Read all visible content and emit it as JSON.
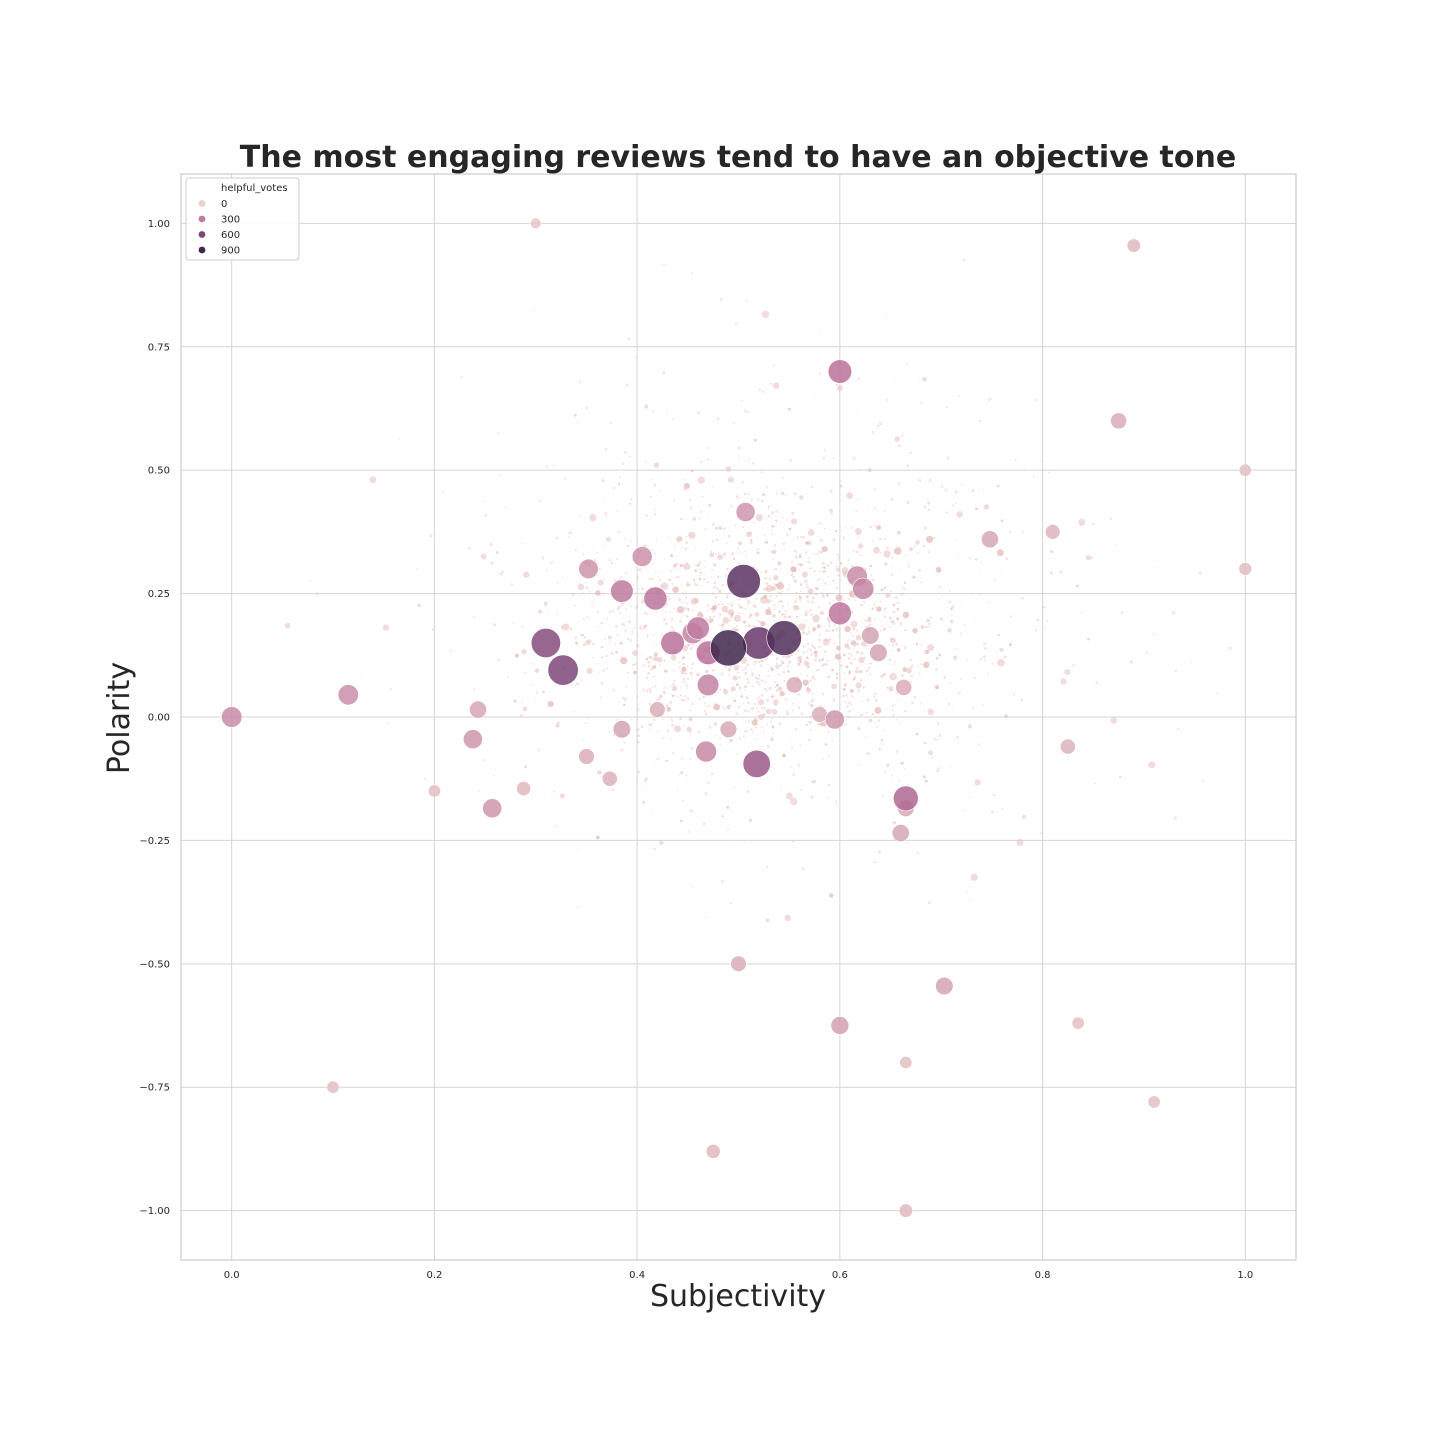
{
  "chart_data": {
    "type": "scatter",
    "title": "The most engaging reviews tend to have an objective tone",
    "xlabel": "Subjectivity",
    "ylabel": "Polarity",
    "xlim": [
      -0.05,
      1.05
    ],
    "ylim": [
      -1.1,
      1.1
    ],
    "xticks": [
      0.0,
      0.2,
      0.4,
      0.6,
      0.8,
      1.0
    ],
    "xtick_labels": [
      "0.0",
      "0.2",
      "0.4",
      "0.6",
      "0.8",
      "1.0"
    ],
    "yticks": [
      1.0,
      0.75,
      0.5,
      0.25,
      0.0,
      -0.25,
      -0.5,
      -0.75,
      -1.0
    ],
    "ytick_labels": [
      "1.00",
      "0.75",
      "0.50",
      "0.25",
      "0.00",
      "−0.25",
      "−0.50",
      "−0.75",
      "−1.00"
    ],
    "grid": true,
    "legend": {
      "title": "helpful_votes",
      "placement": "upper-left",
      "entries": [
        {
          "label": "0",
          "value": 0
        },
        {
          "label": "300",
          "value": 300
        },
        {
          "label": "600",
          "value": 600
        },
        {
          "label": "900",
          "value": 900
        }
      ]
    },
    "hue_colors": [
      "#edd1cb",
      "#b9719a",
      "#6e3b71",
      "#2d1e3e"
    ],
    "hue_max": 1000,
    "points": [
      {
        "x": 0.545,
        "y": 0.16,
        "votes": 820
      },
      {
        "x": 0.505,
        "y": 0.275,
        "votes": 760
      },
      {
        "x": 0.52,
        "y": 0.15,
        "votes": 700
      },
      {
        "x": 0.49,
        "y": 0.14,
        "votes": 900
      },
      {
        "x": 0.31,
        "y": 0.15,
        "votes": 560
      },
      {
        "x": 0.327,
        "y": 0.095,
        "votes": 600
      },
      {
        "x": 0.518,
        "y": -0.095,
        "votes": 470
      },
      {
        "x": 0.6,
        "y": 0.7,
        "votes": 330
      },
      {
        "x": 0.665,
        "y": -0.165,
        "votes": 380
      },
      {
        "x": 0.0,
        "y": 0.0,
        "votes": 240
      },
      {
        "x": 0.288,
        "y": -0.145,
        "votes": 90
      },
      {
        "x": 0.352,
        "y": 0.3,
        "votes": 210
      },
      {
        "x": 0.385,
        "y": 0.255,
        "votes": 300
      },
      {
        "x": 0.418,
        "y": 0.24,
        "votes": 320
      },
      {
        "x": 0.435,
        "y": 0.15,
        "votes": 330
      },
      {
        "x": 0.47,
        "y": 0.13,
        "votes": 340
      },
      {
        "x": 0.455,
        "y": 0.17,
        "votes": 260
      },
      {
        "x": 0.46,
        "y": 0.18,
        "votes": 300
      },
      {
        "x": 0.47,
        "y": 0.065,
        "votes": 270
      },
      {
        "x": 0.468,
        "y": -0.07,
        "votes": 250
      },
      {
        "x": 0.6,
        "y": 0.21,
        "votes": 310
      },
      {
        "x": 0.617,
        "y": 0.285,
        "votes": 240
      },
      {
        "x": 0.623,
        "y": 0.26,
        "votes": 260
      },
      {
        "x": 0.663,
        "y": 0.06,
        "votes": 130
      },
      {
        "x": 0.748,
        "y": 0.36,
        "votes": 150
      },
      {
        "x": 0.6,
        "y": -0.625,
        "votes": 170
      },
      {
        "x": 0.703,
        "y": -0.545,
        "votes": 160
      },
      {
        "x": 0.373,
        "y": -0.125,
        "votes": 110
      },
      {
        "x": 0.405,
        "y": 0.325,
        "votes": 220
      },
      {
        "x": 0.507,
        "y": 0.415,
        "votes": 200
      },
      {
        "x": 0.595,
        "y": -0.005,
        "votes": 200
      },
      {
        "x": 0.115,
        "y": 0.045,
        "votes": 230
      },
      {
        "x": 0.243,
        "y": 0.015,
        "votes": 150
      },
      {
        "x": 0.238,
        "y": -0.045,
        "votes": 200
      },
      {
        "x": 0.257,
        "y": -0.185,
        "votes": 200
      },
      {
        "x": 0.385,
        "y": -0.025,
        "votes": 160
      },
      {
        "x": 0.63,
        "y": 0.165,
        "votes": 160
      },
      {
        "x": 0.638,
        "y": 0.13,
        "votes": 160
      },
      {
        "x": 0.66,
        "y": -0.235,
        "votes": 150
      },
      {
        "x": 0.5,
        "y": -0.5,
        "votes": 120
      },
      {
        "x": 0.875,
        "y": 0.6,
        "votes": 130
      },
      {
        "x": 1.0,
        "y": 0.5,
        "votes": 60
      },
      {
        "x": 1.0,
        "y": 0.3,
        "votes": 70
      },
      {
        "x": 0.665,
        "y": -0.7,
        "votes": 60
      },
      {
        "x": 0.665,
        "y": -1.0,
        "votes": 80
      },
      {
        "x": 0.475,
        "y": -0.88,
        "votes": 90
      },
      {
        "x": 0.1,
        "y": -0.75,
        "votes": 60
      },
      {
        "x": 0.89,
        "y": 0.955,
        "votes": 80
      },
      {
        "x": 0.3,
        "y": 1.0,
        "votes": 40
      },
      {
        "x": 0.2,
        "y": -0.15,
        "votes": 60
      },
      {
        "x": 0.665,
        "y": -0.185,
        "votes": 140
      },
      {
        "x": 0.35,
        "y": -0.08,
        "votes": 120
      },
      {
        "x": 0.555,
        "y": 0.065,
        "votes": 130
      },
      {
        "x": 0.49,
        "y": -0.025,
        "votes": 140
      },
      {
        "x": 0.825,
        "y": -0.06,
        "votes": 110
      },
      {
        "x": 0.81,
        "y": 0.375,
        "votes": 100
      },
      {
        "x": 0.91,
        "y": -0.78,
        "votes": 60
      },
      {
        "x": 0.835,
        "y": -0.62,
        "votes": 60
      },
      {
        "x": 0.58,
        "y": 0.005,
        "votes": 120
      },
      {
        "x": 0.42,
        "y": 0.015,
        "votes": 120
      }
    ]
  }
}
